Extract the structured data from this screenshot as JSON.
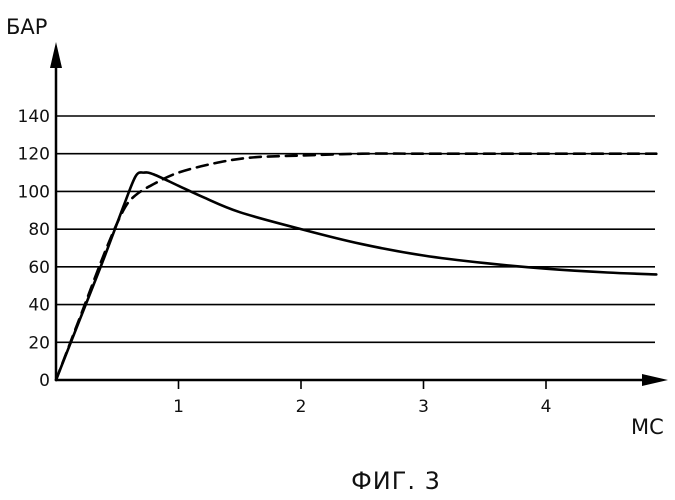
{
  "chart_data": {
    "type": "line",
    "ylabel": "БАР",
    "xlabel": "МС",
    "caption": "ФИГ. 3",
    "xlim": [
      0,
      4.9
    ],
    "ylim": [
      0,
      140
    ],
    "grid": true,
    "x_ticks": [
      {
        "value": 1,
        "label": "1"
      },
      {
        "value": 2,
        "label": "2"
      },
      {
        "value": 3,
        "label": "3"
      },
      {
        "value": 4,
        "label": "4"
      }
    ],
    "y_ticks": [
      {
        "value": 0,
        "label": "0"
      },
      {
        "value": 20,
        "label": "20"
      },
      {
        "value": 40,
        "label": "40"
      },
      {
        "value": 60,
        "label": "60"
      },
      {
        "value": 80,
        "label": "80"
      },
      {
        "value": 100,
        "label": "100"
      },
      {
        "value": 120,
        "label": "120"
      },
      {
        "value": 140,
        "label": "140"
      }
    ],
    "series": [
      {
        "style": "solid",
        "color": "#000000",
        "points": [
          [
            0,
            0
          ],
          [
            0.2,
            33
          ],
          [
            0.4,
            66
          ],
          [
            0.55,
            92
          ],
          [
            0.65,
            108
          ],
          [
            0.72,
            110
          ],
          [
            0.8,
            109
          ],
          [
            1.0,
            103
          ],
          [
            1.2,
            97
          ],
          [
            1.5,
            89
          ],
          [
            2.0,
            80
          ],
          [
            2.5,
            72
          ],
          [
            3.0,
            66
          ],
          [
            3.5,
            62
          ],
          [
            4.0,
            59
          ],
          [
            4.5,
            57
          ],
          [
            4.9,
            56
          ]
        ]
      },
      {
        "style": "dashed",
        "color": "#000000",
        "points": [
          [
            0,
            0
          ],
          [
            0.2,
            34
          ],
          [
            0.4,
            68
          ],
          [
            0.55,
            90
          ],
          [
            0.65,
            98
          ],
          [
            0.8,
            104
          ],
          [
            1.0,
            110
          ],
          [
            1.3,
            115
          ],
          [
            1.6,
            118
          ],
          [
            2.0,
            119
          ],
          [
            2.5,
            120
          ],
          [
            3.0,
            120
          ],
          [
            3.5,
            120
          ],
          [
            4.0,
            120
          ],
          [
            4.5,
            120
          ],
          [
            4.9,
            120
          ]
        ]
      }
    ]
  }
}
